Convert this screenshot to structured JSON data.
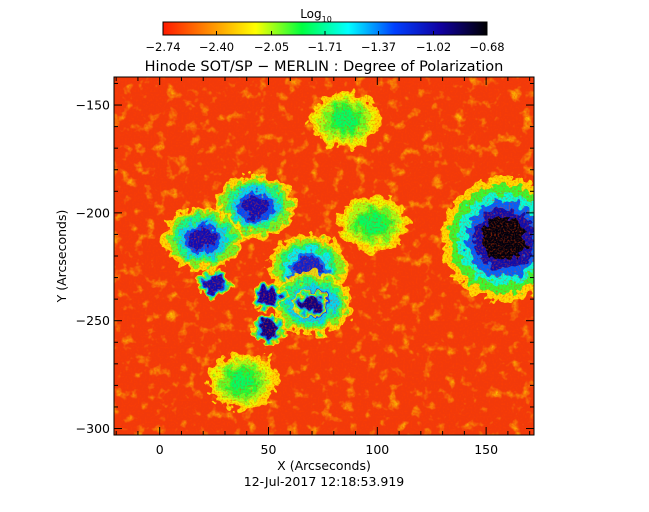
{
  "chart_data": {
    "type": "heatmap",
    "title": "Hinode SOT/SP − MERLIN : Degree of Polarization",
    "xlabel": "X (Arcseconds)",
    "ylabel": "Y (Arcseconds)",
    "xlim": [
      -21,
      172
    ],
    "ylim": [
      -303,
      -137
    ],
    "x_ticks": [
      0,
      50,
      100,
      150
    ],
    "x_tick_labels": [
      "0",
      "50",
      "100",
      "150"
    ],
    "y_ticks": [
      -150,
      -200,
      -250,
      -300
    ],
    "y_tick_labels": [
      "−150",
      "−200",
      "−250",
      "−300"
    ],
    "timestamp": "12-Jul-2017 12:18:53.919",
    "colorbar": {
      "label_main": "Log",
      "label_sub": "10",
      "range": [
        -2.74,
        -0.68
      ],
      "ticks": [
        -2.74,
        -2.4,
        -2.05,
        -1.71,
        -1.37,
        -1.02,
        -0.68
      ],
      "tick_labels": [
        "−2.74",
        "−2.40",
        "−2.05",
        "−1.71",
        "−1.37",
        "−1.02",
        "−0.68"
      ],
      "colors": [
        "#ff1a00",
        "#ff8c00",
        "#ffff00",
        "#00ff40",
        "#00ffff",
        "#0040ff",
        "#1000a0",
        "#000000"
      ]
    },
    "features": [
      {
        "kind": "sunspot-umbra",
        "x": 158,
        "y": -212,
        "value": -0.68
      },
      {
        "kind": "plage",
        "x": 44,
        "y": -197,
        "value": -1.02
      },
      {
        "kind": "plage",
        "x": 20,
        "y": -212,
        "value": -1.02
      },
      {
        "kind": "plage",
        "x": 68,
        "y": -225,
        "value": -1.1
      },
      {
        "kind": "plage",
        "x": 70,
        "y": -242,
        "value": -1.02
      },
      {
        "kind": "pore",
        "x": 50,
        "y": -239,
        "value": -0.95
      },
      {
        "kind": "pore",
        "x": 69,
        "y": -242,
        "value": -0.9
      },
      {
        "kind": "pore",
        "x": 50,
        "y": -254,
        "value": -0.9
      },
      {
        "kind": "pore",
        "x": 25,
        "y": -233,
        "value": -1.0
      },
      {
        "kind": "network",
        "x": 98,
        "y": -205,
        "value": -1.8
      },
      {
        "kind": "network",
        "x": 38,
        "y": -278,
        "value": -1.8
      },
      {
        "kind": "network",
        "x": 85,
        "y": -157,
        "value": -1.8
      }
    ]
  }
}
